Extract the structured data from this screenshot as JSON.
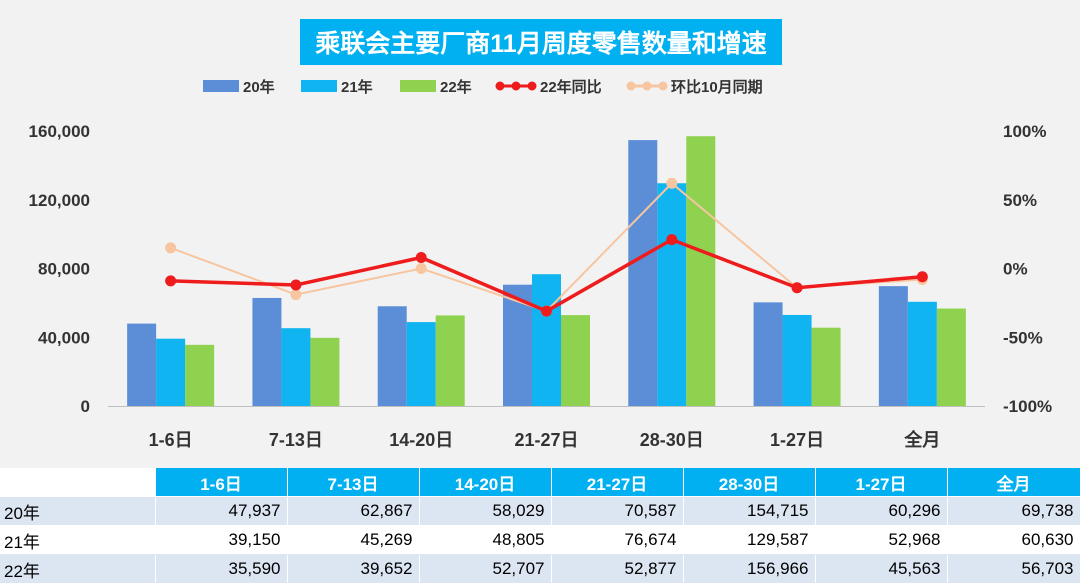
{
  "colors": {
    "s20": "#5b8ed6",
    "s21": "#0fb4f0",
    "s22": "#8ed24f",
    "yoy22": "#ee1c1c",
    "mom10": "#f7c59f",
    "title_bg": "#00b0f0"
  },
  "chart_data": {
    "type": "bar",
    "title": "乘联会主要厂商11月周度零售数量和增速",
    "categories": [
      "1-6日",
      "7-13日",
      "14-20日",
      "21-27日",
      "28-30日",
      "1-27日",
      "全月"
    ],
    "series": [
      {
        "name": "20年",
        "kind": "bar",
        "color": "#5b8ed6",
        "values": [
          47937,
          62867,
          58029,
          70587,
          154715,
          60296,
          69738
        ]
      },
      {
        "name": "21年",
        "kind": "bar",
        "color": "#0fb4f0",
        "values": [
          39150,
          45269,
          48805,
          76674,
          129587,
          52968,
          60630
        ]
      },
      {
        "name": "22年",
        "kind": "bar",
        "color": "#8ed24f",
        "values": [
          35590,
          39652,
          52707,
          52877,
          156966,
          45563,
          56703
        ]
      },
      {
        "name": "22年同比",
        "kind": "line",
        "axis": "right",
        "color": "#ee1c1c",
        "values": [
          -9,
          -12,
          8,
          -31,
          21,
          -14,
          -6
        ]
      },
      {
        "name": "环比10月同期",
        "kind": "line",
        "axis": "right",
        "color": "#f7c59f",
        "values": [
          15,
          -19,
          0,
          -31,
          62,
          -14,
          -8
        ]
      }
    ],
    "left_axis": {
      "min": 0,
      "max": 160000,
      "ticks": [
        0,
        40000,
        80000,
        120000,
        160000
      ],
      "tick_labels": [
        "0",
        "40,000",
        "80,000",
        "120,000",
        "160,000"
      ]
    },
    "right_axis": {
      "min": -100,
      "max": 100,
      "ticks": [
        -100,
        -50,
        0,
        50,
        100
      ],
      "tick_labels": [
        "-100%",
        "-50%",
        "0%",
        "50%",
        "100%"
      ]
    },
    "legend_position": "top"
  },
  "table": {
    "headers": [
      "1-6日",
      "7-13日",
      "14-20日",
      "21-27日",
      "28-30日",
      "1-27日",
      "全月"
    ],
    "rows": [
      {
        "label": "20年",
        "cells": [
          "47,937",
          "62,867",
          "58,029",
          "70,587",
          "154,715",
          "60,296",
          "69,738"
        ]
      },
      {
        "label": "21年",
        "cells": [
          "39,150",
          "45,269",
          "48,805",
          "76,674",
          "129,587",
          "52,968",
          "60,630"
        ]
      },
      {
        "label": "22年",
        "cells": [
          "35,590",
          "39,652",
          "52,707",
          "52,877",
          "156,966",
          "45,563",
          "56,703"
        ]
      }
    ]
  }
}
